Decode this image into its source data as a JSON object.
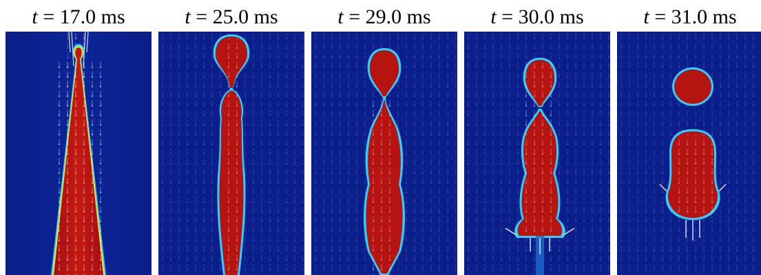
{
  "figure": {
    "panels": [
      {
        "time_var": "t",
        "time_text": " = 17.0 ms",
        "stage": "thin-jet-with-tip"
      },
      {
        "time_var": "t",
        "time_text": " = 25.0 ms",
        "stage": "necking"
      },
      {
        "time_var": "t",
        "time_text": " = 29.0 ms",
        "stage": "deep-necking"
      },
      {
        "time_var": "t",
        "time_text": " = 30.0 ms",
        "stage": "pinch-off"
      },
      {
        "time_var": "t",
        "time_text": " = 31.0 ms",
        "stage": "separated-droplet"
      }
    ],
    "colors": {
      "background_field": "#0a1f8f",
      "liquid": "#b01010",
      "liquid_core": "#c81a12",
      "interface_outer": "#2fd0ff",
      "interface_inner": "#f0f020",
      "vectors": "#ffffff"
    }
  }
}
